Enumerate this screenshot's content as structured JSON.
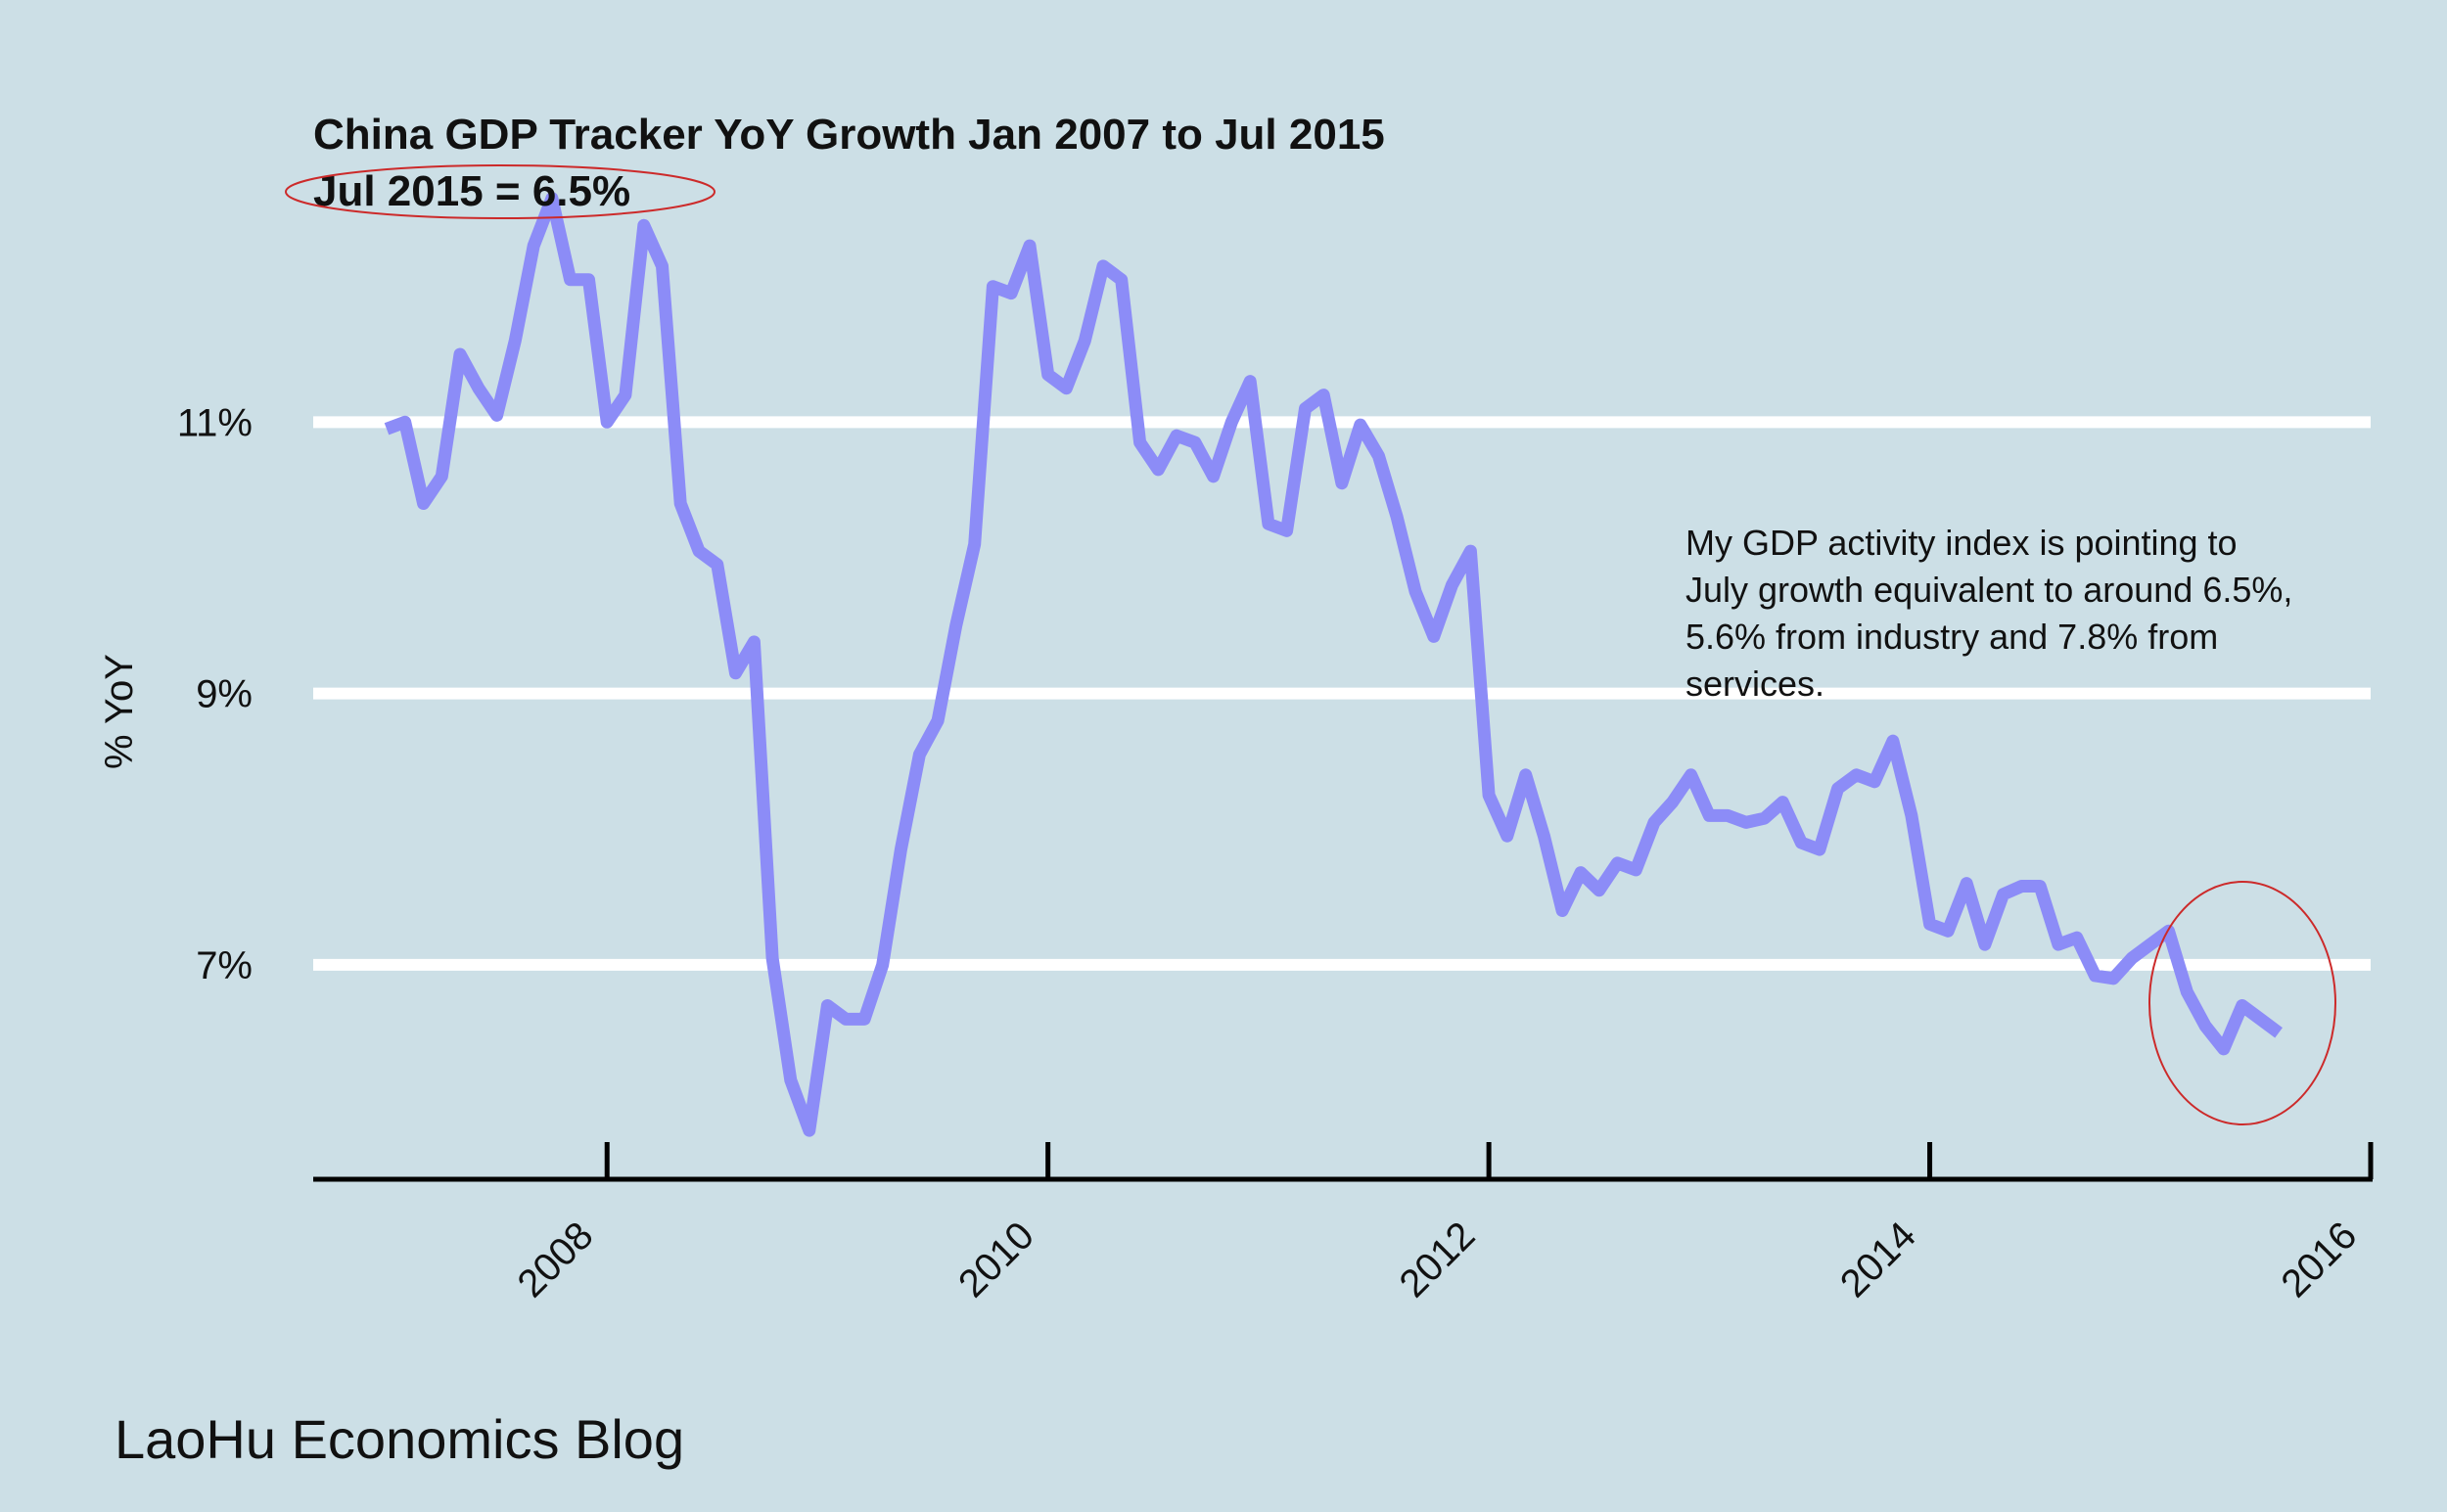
{
  "chart_data": {
    "type": "line",
    "title": "China GDP Tracker YoY Growth Jan 2007 to Jul 2015",
    "subtitle": "Jul 2015 = 6.5%",
    "xlabel": "",
    "ylabel": "% YoY",
    "y_ticks": [
      "7%",
      "9%",
      "11%"
    ],
    "y_tick_values": [
      7,
      9,
      11
    ],
    "x_ticks": [
      "2008",
      "2010",
      "2012",
      "2014",
      "2016"
    ],
    "x_tick_values": [
      2008,
      2010,
      2012,
      2014,
      2016
    ],
    "xlim": [
      2006.667,
      2016
    ],
    "ylim": [
      5.42,
      12.38
    ],
    "grid": "horizontal",
    "line_color": "#8c8cf7",
    "annotation_color": "#cc2a2a",
    "annotation": "My GDP activity index is pointing to July growth equivalent to around 6.5%, 5.6% from industry and 7.8% from services.",
    "annotation_lines": [
      "My GDP activity index is pointing to",
      "July growth equivalent to around 6.5%,",
      "5.6% from industry and 7.8% from",
      "services."
    ],
    "series": [
      {
        "x": [
          2007.0,
          2007.083,
          2007.167,
          2007.25,
          2007.333,
          2007.417,
          2007.5,
          2007.583,
          2007.667,
          2007.75,
          2007.833,
          2007.917,
          2008.0,
          2008.083,
          2008.167,
          2008.25,
          2008.333,
          2008.417,
          2008.5,
          2008.583,
          2008.667,
          2008.75,
          2008.833,
          2008.917,
          2009.0,
          2009.083,
          2009.167,
          2009.25,
          2009.333,
          2009.417,
          2009.5,
          2009.583,
          2009.667,
          2009.75,
          2009.833,
          2009.917,
          2010.0,
          2010.083,
          2010.167,
          2010.25,
          2010.333,
          2010.417,
          2010.5,
          2010.583,
          2010.667,
          2010.75,
          2010.833,
          2010.917,
          2011.0,
          2011.083,
          2011.167,
          2011.25,
          2011.333,
          2011.417,
          2011.5,
          2011.583,
          2011.667,
          2011.75,
          2011.833,
          2011.917,
          2012.0,
          2012.083,
          2012.167,
          2012.25,
          2012.333,
          2012.417,
          2012.5,
          2012.583,
          2012.667,
          2012.75,
          2012.833,
          2012.917,
          2013.0,
          2013.083,
          2013.167,
          2013.25,
          2013.333,
          2013.417,
          2013.5,
          2013.583,
          2013.667,
          2013.75,
          2013.833,
          2013.917,
          2014.0,
          2014.083,
          2014.167,
          2014.25,
          2014.333,
          2014.417,
          2014.5,
          2014.583,
          2014.667,
          2014.75,
          2014.833,
          2014.917,
          2015.0,
          2015.083,
          2015.167,
          2015.25,
          2015.333,
          2015.417,
          2015.5,
          2015.583
        ],
        "values": [
          10.95,
          11.0,
          10.4,
          10.6,
          11.5,
          11.25,
          11.05,
          11.6,
          12.3,
          12.65,
          12.05,
          12.05,
          11.0,
          11.2,
          12.45,
          12.15,
          10.4,
          10.05,
          9.95,
          9.15,
          9.38,
          7.05,
          6.15,
          5.78,
          6.7,
          6.6,
          6.6,
          7.0,
          7.85,
          8.55,
          8.8,
          9.5,
          10.1,
          12.0,
          11.95,
          12.3,
          11.35,
          11.25,
          11.6,
          12.15,
          12.05,
          10.85,
          10.65,
          10.9,
          10.85,
          10.6,
          11.0,
          11.3,
          10.25,
          10.2,
          11.1,
          11.2,
          10.55,
          10.98,
          10.75,
          10.3,
          9.75,
          9.42,
          9.8,
          10.05,
          8.25,
          7.95,
          8.4,
          7.95,
          7.4,
          7.68,
          7.55,
          7.75,
          7.7,
          8.05,
          8.2,
          8.4,
          8.1,
          8.1,
          8.05,
          8.08,
          8.2,
          7.9,
          7.85,
          8.3,
          8.4,
          8.35,
          8.65,
          8.1,
          7.3,
          7.25,
          7.6,
          7.15,
          7.52,
          7.58,
          7.58,
          7.15,
          7.2,
          6.92,
          6.9,
          7.05,
          7.15,
          7.25,
          6.8,
          6.55,
          6.38,
          6.7,
          6.6,
          6.5
        ]
      }
    ]
  },
  "footer": {
    "text": "LaoHu Economics Blog"
  }
}
